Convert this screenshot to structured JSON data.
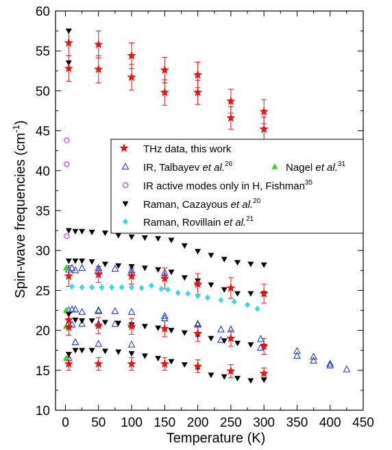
{
  "chart_data": {
    "type": "scatter",
    "xlabel": "Temperature (K)",
    "ylabel_main": "Spin-wave frequencies (cm",
    "ylabel_sup": "-1",
    "ylabel_close": ")",
    "xlim": [
      -15,
      450
    ],
    "ylim": [
      10,
      60
    ],
    "xticks": [
      0,
      50,
      100,
      150,
      200,
      250,
      300,
      350,
      400,
      450
    ],
    "yticks": [
      10,
      15,
      20,
      25,
      30,
      35,
      40,
      45,
      50,
      55,
      60
    ],
    "grid": false,
    "legend_position": "center",
    "colors": {
      "red": "#ee1111",
      "blue": "#1f3fd0",
      "green": "#22dd22",
      "magenta": "#dd22dd",
      "black": "#000000",
      "cyan": "#33dddd"
    },
    "series": [
      {
        "key": "thz",
        "legend": "THz data, this work",
        "marker": "star",
        "color": "#ee1111",
        "points": [
          {
            "x": 5,
            "y": 56.0,
            "err": 1.6
          },
          {
            "x": 5,
            "y": 52.8,
            "err": 1.6
          },
          {
            "x": 5,
            "y": 26.8,
            "err": 1.3
          },
          {
            "x": 5,
            "y": 21.3,
            "err": 1.0
          },
          {
            "x": 5,
            "y": 20.4,
            "err": 1.0
          },
          {
            "x": 5,
            "y": 15.8,
            "err": 0.8
          },
          {
            "x": 50,
            "y": 55.8,
            "err": 1.7
          },
          {
            "x": 50,
            "y": 52.7,
            "err": 1.7
          },
          {
            "x": 50,
            "y": 27.0,
            "err": 1.0
          },
          {
            "x": 50,
            "y": 20.6,
            "err": 1.0
          },
          {
            "x": 50,
            "y": 15.8,
            "err": 0.8
          },
          {
            "x": 100,
            "y": 54.4,
            "err": 1.6
          },
          {
            "x": 100,
            "y": 51.7,
            "err": 1.6
          },
          {
            "x": 100,
            "y": 26.8,
            "err": 1.0
          },
          {
            "x": 100,
            "y": 20.5,
            "err": 1.0
          },
          {
            "x": 100,
            "y": 15.8,
            "err": 0.8
          },
          {
            "x": 150,
            "y": 52.6,
            "err": 1.6
          },
          {
            "x": 150,
            "y": 49.8,
            "err": 1.6
          },
          {
            "x": 150,
            "y": 26.5,
            "err": 1.3
          },
          {
            "x": 150,
            "y": 20.2,
            "err": 1.0
          },
          {
            "x": 150,
            "y": 15.8,
            "err": 0.8
          },
          {
            "x": 200,
            "y": 52.0,
            "err": 1.6
          },
          {
            "x": 200,
            "y": 49.8,
            "err": 1.5
          },
          {
            "x": 200,
            "y": 25.8,
            "err": 1.3
          },
          {
            "x": 200,
            "y": 19.6,
            "err": 1.0
          },
          {
            "x": 200,
            "y": 15.5,
            "err": 0.8
          },
          {
            "x": 250,
            "y": 48.7,
            "err": 1.5
          },
          {
            "x": 250,
            "y": 46.6,
            "err": 1.4
          },
          {
            "x": 250,
            "y": 25.3,
            "err": 1.3
          },
          {
            "x": 250,
            "y": 19.0,
            "err": 1.0
          },
          {
            "x": 250,
            "y": 14.9,
            "err": 0.8
          },
          {
            "x": 300,
            "y": 47.4,
            "err": 1.5
          },
          {
            "x": 300,
            "y": 45.2,
            "err": 1.5
          },
          {
            "x": 300,
            "y": 24.6,
            "err": 1.2
          },
          {
            "x": 300,
            "y": 18.0,
            "err": 1.0
          },
          {
            "x": 300,
            "y": 14.6,
            "err": 0.7
          }
        ]
      },
      {
        "key": "ir_talbayev",
        "legend_pre": "IR, Talbayev ",
        "legend_italic": "et al.",
        "legend_sup": "26",
        "marker": "triangle-open",
        "color": "#1f3fd0",
        "points": [
          {
            "x": 5,
            "y": 27.6
          },
          {
            "x": 5,
            "y": 22.5
          },
          {
            "x": 5,
            "y": 20.8
          },
          {
            "x": 5,
            "y": 16.5
          },
          {
            "x": 10,
            "y": 27.8
          },
          {
            "x": 10,
            "y": 22.6
          },
          {
            "x": 10,
            "y": 20.7
          },
          {
            "x": 15,
            "y": 27.5
          },
          {
            "x": 15,
            "y": 22.6
          },
          {
            "x": 15,
            "y": 18.5
          },
          {
            "x": 25,
            "y": 27.8
          },
          {
            "x": 25,
            "y": 22.3
          },
          {
            "x": 25,
            "y": 20.8
          },
          {
            "x": 50,
            "y": 27.8
          },
          {
            "x": 50,
            "y": 27.5
          },
          {
            "x": 50,
            "y": 22.4
          },
          {
            "x": 50,
            "y": 22.5
          },
          {
            "x": 50,
            "y": 20.8
          },
          {
            "x": 50,
            "y": 18.3
          },
          {
            "x": 75,
            "y": 27.7
          },
          {
            "x": 75,
            "y": 22.4
          },
          {
            "x": 75,
            "y": 20.8
          },
          {
            "x": 100,
            "y": 27.5
          },
          {
            "x": 100,
            "y": 27.2
          },
          {
            "x": 100,
            "y": 22.3
          },
          {
            "x": 100,
            "y": 20.7
          },
          {
            "x": 100,
            "y": 18.2
          },
          {
            "x": 150,
            "y": 27.2
          },
          {
            "x": 150,
            "y": 26.8
          },
          {
            "x": 150,
            "y": 21.8
          },
          {
            "x": 150,
            "y": 21.5
          },
          {
            "x": 200,
            "y": 26.0
          },
          {
            "x": 200,
            "y": 20.8
          },
          {
            "x": 200,
            "y": 20.7
          },
          {
            "x": 235,
            "y": 20.1
          },
          {
            "x": 235,
            "y": 18.8
          },
          {
            "x": 250,
            "y": 20.1
          },
          {
            "x": 295,
            "y": 18.9
          },
          {
            "x": 295,
            "y": 17.8
          },
          {
            "x": 350,
            "y": 17.4
          },
          {
            "x": 350,
            "y": 16.8
          },
          {
            "x": 375,
            "y": 16.7
          },
          {
            "x": 375,
            "y": 16.2
          },
          {
            "x": 400,
            "y": 15.8
          },
          {
            "x": 400,
            "y": 15.6
          },
          {
            "x": 425,
            "y": 15.1
          }
        ]
      },
      {
        "key": "nagel",
        "legend_pre": "Nagel ",
        "legend_italic": "et al.",
        "legend_sup": "31",
        "marker": "triangle-filled",
        "color": "#22dd22",
        "points": [
          {
            "x": 1,
            "y": 27.8
          },
          {
            "x": 1,
            "y": 22.5
          },
          {
            "x": 1,
            "y": 20.5
          },
          {
            "x": 1,
            "y": 16.5
          }
        ]
      },
      {
        "key": "ir_fishman",
        "legend_pre": "IR active modes only in H, Fishman",
        "legend_sup": "35",
        "marker": "circle-open",
        "color": "#dd22dd",
        "points": [
          {
            "x": 2,
            "y": 43.8
          },
          {
            "x": 2,
            "y": 40.8
          },
          {
            "x": 2,
            "y": 31.8
          }
        ]
      },
      {
        "key": "raman_cazayous",
        "legend_pre": "Raman, Cazayous ",
        "legend_italic": "et al.",
        "legend_sup": "20",
        "marker": "triangle-down",
        "color": "#000000",
        "points": [
          {
            "x": 5,
            "y": 57.5
          },
          {
            "x": 5,
            "y": 53.5
          },
          {
            "x": 5,
            "y": 32.5
          },
          {
            "x": 5,
            "y": 28.7
          },
          {
            "x": 5,
            "y": 22.0
          },
          {
            "x": 5,
            "y": 17.0
          },
          {
            "x": 15,
            "y": 32.4
          },
          {
            "x": 15,
            "y": 28.7
          },
          {
            "x": 15,
            "y": 21.3
          },
          {
            "x": 15,
            "y": 17.5
          },
          {
            "x": 25,
            "y": 32.4
          },
          {
            "x": 25,
            "y": 28.7
          },
          {
            "x": 25,
            "y": 21.2
          },
          {
            "x": 25,
            "y": 17.5
          },
          {
            "x": 40,
            "y": 32.3
          },
          {
            "x": 40,
            "y": 28.6
          },
          {
            "x": 40,
            "y": 21.2
          },
          {
            "x": 40,
            "y": 17.5
          },
          {
            "x": 60,
            "y": 32.2
          },
          {
            "x": 60,
            "y": 28.3
          },
          {
            "x": 60,
            "y": 21.0
          },
          {
            "x": 60,
            "y": 17.4
          },
          {
            "x": 80,
            "y": 31.9
          },
          {
            "x": 80,
            "y": 28.1
          },
          {
            "x": 80,
            "y": 20.9
          },
          {
            "x": 80,
            "y": 17.3
          },
          {
            "x": 100,
            "y": 31.7
          },
          {
            "x": 100,
            "y": 28.0
          },
          {
            "x": 100,
            "y": 20.7
          },
          {
            "x": 100,
            "y": 17.1
          },
          {
            "x": 120,
            "y": 31.6
          },
          {
            "x": 120,
            "y": 27.8
          },
          {
            "x": 120,
            "y": 20.5
          },
          {
            "x": 120,
            "y": 16.8
          },
          {
            "x": 140,
            "y": 31.5
          },
          {
            "x": 140,
            "y": 27.6
          },
          {
            "x": 140,
            "y": 20.3
          },
          {
            "x": 140,
            "y": 16.5
          },
          {
            "x": 160,
            "y": 31.3
          },
          {
            "x": 160,
            "y": 27.3
          },
          {
            "x": 160,
            "y": 20.0
          },
          {
            "x": 160,
            "y": 16.1
          },
          {
            "x": 180,
            "y": 30.6
          },
          {
            "x": 180,
            "y": 26.6
          },
          {
            "x": 180,
            "y": 19.7
          },
          {
            "x": 180,
            "y": 15.7
          },
          {
            "x": 200,
            "y": 29.9
          },
          {
            "x": 200,
            "y": 26.2
          },
          {
            "x": 200,
            "y": 19.4
          },
          {
            "x": 200,
            "y": 15.3
          },
          {
            "x": 220,
            "y": 29.4
          },
          {
            "x": 220,
            "y": 25.7
          },
          {
            "x": 220,
            "y": 19.0
          },
          {
            "x": 220,
            "y": 14.4
          },
          {
            "x": 240,
            "y": 28.9
          },
          {
            "x": 240,
            "y": 25.1
          },
          {
            "x": 240,
            "y": 18.7
          },
          {
            "x": 240,
            "y": 14.2
          },
          {
            "x": 260,
            "y": 28.5
          },
          {
            "x": 260,
            "y": 24.6
          },
          {
            "x": 260,
            "y": 18.4
          },
          {
            "x": 260,
            "y": 14.0
          },
          {
            "x": 280,
            "y": 28.3
          },
          {
            "x": 280,
            "y": 24.6
          },
          {
            "x": 280,
            "y": 18.2
          },
          {
            "x": 280,
            "y": 13.7
          },
          {
            "x": 300,
            "y": 28.2
          },
          {
            "x": 300,
            "y": 24.6
          },
          {
            "x": 300,
            "y": 18.0
          },
          {
            "x": 300,
            "y": 13.8
          }
        ]
      },
      {
        "key": "raman_rovillain",
        "legend_pre": "Raman, Rovillain ",
        "legend_italic": "et al.",
        "legend_sup": "21",
        "marker": "diamond",
        "color": "#33dddd",
        "points": [
          {
            "x": 10,
            "y": 25.5
          },
          {
            "x": 25,
            "y": 25.4
          },
          {
            "x": 40,
            "y": 25.4
          },
          {
            "x": 55,
            "y": 25.4
          },
          {
            "x": 70,
            "y": 25.4
          },
          {
            "x": 85,
            "y": 25.4
          },
          {
            "x": 100,
            "y": 25.4
          },
          {
            "x": 115,
            "y": 25.3
          },
          {
            "x": 130,
            "y": 25.6
          },
          {
            "x": 145,
            "y": 25.2
          },
          {
            "x": 155,
            "y": 25.1
          },
          {
            "x": 170,
            "y": 24.7
          },
          {
            "x": 185,
            "y": 24.6
          },
          {
            "x": 200,
            "y": 24.3
          },
          {
            "x": 215,
            "y": 24.1
          },
          {
            "x": 235,
            "y": 23.8
          },
          {
            "x": 255,
            "y": 23.6
          },
          {
            "x": 275,
            "y": 23.2
          },
          {
            "x": 290,
            "y": 22.7
          }
        ]
      }
    ]
  }
}
